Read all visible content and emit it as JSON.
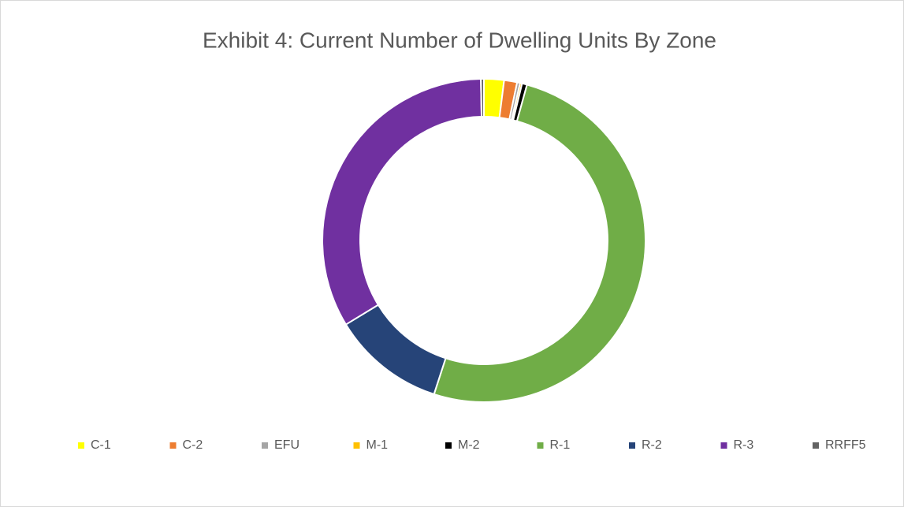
{
  "chart_data": {
    "type": "donut",
    "title": "Exhibit 4: Current Number of Dwelling Units By Zone",
    "categories": [
      "C-1",
      "C-2",
      "EFU",
      "M-1",
      "M-2",
      "R-1",
      "R-2",
      "R-3",
      "RRFF5"
    ],
    "values": [
      2,
      1.3,
      0.3,
      0.2,
      0.5,
      50.7,
      11.3,
      33.4,
      0.3
    ],
    "colors": [
      "#ffff00",
      "#ed7d31",
      "#a5a5a5",
      "#ffc000",
      "#000000",
      "#70ad47",
      "#264478",
      "#7030a0",
      "#636363"
    ],
    "legend": "bottom"
  }
}
